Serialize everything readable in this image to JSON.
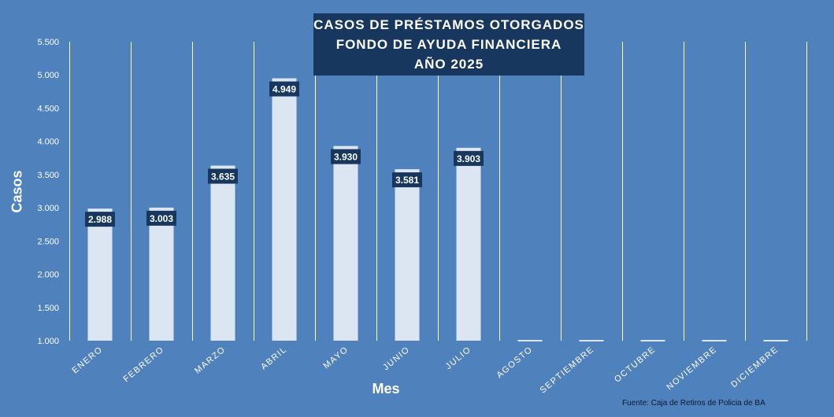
{
  "chart_data": {
    "type": "bar",
    "title_lines": [
      "CASOS DE PRÉSTAMOS OTORGADOS",
      "FONDO DE AYUDA FINANCIERA",
      "AÑO 2025"
    ],
    "xlabel": "Mes",
    "ylabel": "Casos",
    "source": "Fuente: Caja de Retiros de Policia de BA",
    "categories": [
      "ENERO",
      "FEBRERO",
      "MARZO",
      "ABRIL",
      "MAYO",
      "JUNIO",
      "JULIO",
      "AGOSTO",
      "SEPTIEMBRE",
      "OCTUBRE",
      "NOVIEMBRE",
      "DICIEMBRE"
    ],
    "values": [
      2988,
      3003,
      3635,
      4949,
      3930,
      3581,
      3903,
      null,
      null,
      null,
      null,
      null
    ],
    "value_labels": [
      "2.988",
      "3.003",
      "3.635",
      "4.949",
      "3.930",
      "3.581",
      "3.903",
      "",
      "",
      "",
      "",
      ""
    ],
    "ylim": [
      1000,
      5500
    ],
    "yticks": [
      1000,
      1500,
      2000,
      2500,
      3000,
      3500,
      4000,
      4500,
      5000,
      5500
    ],
    "ytick_labels": [
      "1.000",
      "1.500",
      "2.000",
      "2.500",
      "3.000",
      "3.500",
      "4.000",
      "4.500",
      "5.000",
      "5.500"
    ],
    "grid": "vertical separators",
    "legend": "none",
    "colors": {
      "background": "#4f81bd",
      "bar": "#dce6f2",
      "label_box": "#17375e",
      "title_box": "#17375e",
      "text": "#ffffff"
    }
  }
}
